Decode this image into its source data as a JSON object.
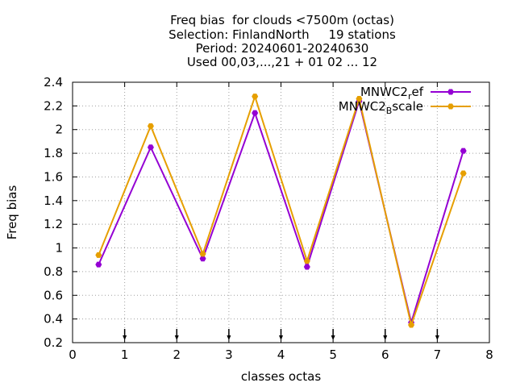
{
  "chart_data": {
    "type": "line",
    "title_lines": [
      "Freq bias  for clouds <7500m (octas)",
      "Selection: FinlandNorth     19 stations",
      "Period: 20240601-20240630",
      "Used 00,03,...,21 + 01 02 ... 12"
    ],
    "xlabel": "classes octas",
    "ylabel": "Freq bias",
    "xlim": [
      0,
      8
    ],
    "ylim": [
      0.2,
      2.4
    ],
    "xticks": [
      "0",
      "1",
      "2",
      "3",
      "4",
      "5",
      "6",
      "7",
      "8"
    ],
    "yticks": [
      "0.2",
      "0.4",
      "0.6",
      "0.8",
      "1",
      "1.2",
      "1.4",
      "1.6",
      "1.8",
      "2",
      "2.2",
      "2.4"
    ],
    "grid": true,
    "legend_position": "top-right",
    "x": [
      0.5,
      1.5,
      2.5,
      3.5,
      4.5,
      5.5,
      6.5,
      7.5
    ],
    "series": [
      {
        "name": "MNWC2_ref",
        "legend_main": "MNWC2",
        "legend_sub": "r",
        "legend_rest": "ef",
        "color": "#9400d3",
        "values": [
          0.86,
          1.85,
          0.91,
          2.14,
          0.84,
          2.24,
          0.37,
          1.82
        ]
      },
      {
        "name": "MNWC2_Bscale",
        "legend_main": "MNWC2",
        "legend_sub": "B",
        "legend_rest": "scale",
        "color": "#e69f00",
        "values": [
          0.94,
          2.03,
          0.95,
          2.28,
          0.89,
          2.26,
          0.35,
          1.63
        ]
      }
    ],
    "station_markers_x": [
      1,
      2,
      3,
      4,
      5,
      6,
      7
    ]
  }
}
